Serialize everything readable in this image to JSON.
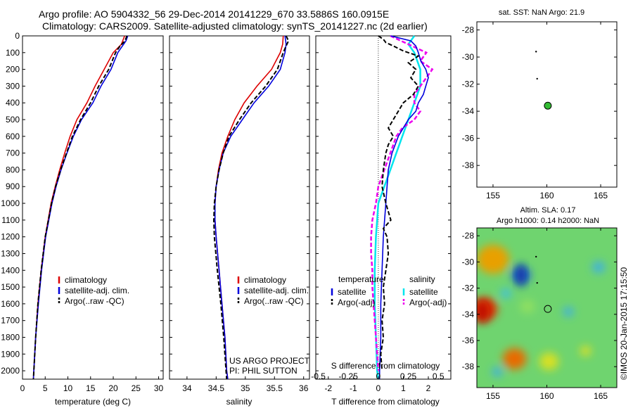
{
  "header": {
    "line1": "Argo profile: AO 5904332_56 29-Dec-2014 20141229_670 33.5886S 160.0915E",
    "line2": "Climatology: CARS2009. Satellite-adjusted climatology: synTS_20141227.nc (2d earlier)"
  },
  "credit": "©IMOS 20-Jan-2015 17:15:50",
  "colors": {
    "climatology": "#dd0000",
    "satellite": "#0000dd",
    "argo": "#000000",
    "sat_sal": "#00e5ee",
    "argo_sal": "#ee00ee"
  },
  "chart_data": [
    {
      "type": "line",
      "panel": "temperature",
      "xlabel": "temperature (deg C)",
      "xlim": [
        0,
        31
      ],
      "xticks": [
        0,
        5,
        10,
        15,
        20,
        25,
        30
      ],
      "ylim": [
        2050,
        0
      ],
      "yticks": [
        0,
        100,
        200,
        300,
        400,
        500,
        600,
        700,
        800,
        900,
        1000,
        1100,
        1200,
        1300,
        1400,
        1500,
        1600,
        1700,
        1800,
        1900,
        2000
      ],
      "legend": [
        "climatology",
        "satellite-adj. clim.",
        "Argo(..raw -QC)"
      ],
      "series": [
        {
          "name": "climatology",
          "depth": [
            0,
            50,
            100,
            200,
            300,
            400,
            500,
            600,
            700,
            800,
            900,
            1000,
            1200,
            1400,
            1600,
            1800,
            2000,
            2050
          ],
          "values": [
            22.5,
            21.8,
            20,
            18,
            16,
            14.2,
            12,
            10.5,
            9.3,
            8.2,
            7.2,
            6.3,
            5,
            4.1,
            3.4,
            2.9,
            2.5,
            2.4
          ]
        },
        {
          "name": "satellite-adj. clim.",
          "depth": [
            0,
            30,
            100,
            200,
            300,
            400,
            500,
            600,
            700,
            800,
            900,
            1000,
            1200,
            1400,
            1600,
            1800,
            2000,
            2050
          ],
          "values": [
            23.2,
            22.8,
            21,
            19.5,
            17.3,
            15.5,
            13,
            11.2,
            9.8,
            8.5,
            7.4,
            6.5,
            5.1,
            4.2,
            3.5,
            2.9,
            2.5,
            2.4
          ]
        },
        {
          "name": "Argo(..raw -QC)",
          "depth": [
            0,
            30,
            60,
            100,
            200,
            300,
            400,
            500,
            600,
            700,
            800,
            900,
            1000,
            1200,
            1400,
            1600,
            1800,
            2000,
            2050
          ],
          "values": [
            23,
            22.6,
            21.5,
            20.5,
            19,
            16.8,
            15,
            12.8,
            11,
            9.7,
            8.4,
            7.3,
            6.4,
            5,
            4.1,
            3.4,
            2.9,
            2.5,
            2.4
          ]
        }
      ]
    },
    {
      "type": "line",
      "panel": "salinity",
      "xlabel": "salinity",
      "xlim": [
        33.7,
        36.1
      ],
      "xticks": [
        34,
        34.5,
        35,
        35.5,
        36
      ],
      "xticklabels": [
        "34",
        "34.5",
        "35",
        "35.5",
        "36"
      ],
      "ylim": [
        2050,
        0
      ],
      "legend": [
        "climatology",
        "satellite-adj. clim.",
        "Argo(..raw -QC)"
      ],
      "note": [
        "US ARGO PROJECT",
        "PI: PHIL SUTTON"
      ],
      "series": [
        {
          "name": "climatology",
          "depth": [
            0,
            50,
            100,
            200,
            300,
            400,
            500,
            600,
            700,
            800,
            900,
            1000,
            1100,
            1200,
            1400,
            1600,
            1800,
            2000,
            2050
          ],
          "values": [
            35.65,
            35.64,
            35.6,
            35.45,
            35.2,
            34.98,
            34.82,
            34.7,
            34.6,
            34.54,
            34.5,
            34.48,
            34.48,
            34.5,
            34.55,
            34.6,
            34.65,
            34.68,
            34.7
          ]
        },
        {
          "name": "satellite-adj. clim.",
          "depth": [
            0,
            50,
            100,
            200,
            300,
            400,
            500,
            600,
            700,
            800,
            900,
            1000,
            1100,
            1200,
            1400,
            1600,
            1800,
            2000,
            2050
          ],
          "values": [
            35.68,
            35.7,
            35.68,
            35.6,
            35.4,
            35.15,
            34.95,
            34.75,
            34.62,
            34.55,
            34.5,
            34.48,
            34.48,
            34.5,
            34.55,
            34.6,
            34.65,
            34.68,
            34.7
          ]
        },
        {
          "name": "Argo(..raw -QC)",
          "depth": [
            0,
            30,
            60,
            100,
            200,
            300,
            400,
            500,
            600,
            700,
            800,
            900,
            1000,
            1100,
            1200,
            1400,
            1600,
            1800,
            2000,
            2050
          ],
          "values": [
            35.7,
            35.74,
            35.7,
            35.65,
            35.55,
            35.35,
            35.1,
            34.9,
            34.72,
            34.62,
            34.55,
            34.5,
            34.47,
            34.46,
            34.47,
            34.52,
            34.58,
            34.63,
            34.67,
            34.68
          ]
        }
      ]
    },
    {
      "type": "line",
      "panel": "difference",
      "xlabel": "T difference from climatology",
      "xlabel_top": "S difference from climatology",
      "xlim": [
        -2.5,
        2.9
      ],
      "xticks": [
        -2,
        -1,
        0,
        1,
        2
      ],
      "xticklabels": [
        "-2",
        "-1",
        "0",
        "1",
        "2"
      ],
      "xticks_s": [
        -0.5,
        -0.25,
        0,
        0.25,
        0.5
      ],
      "xticklabels_s": [
        "-0.5",
        "-0.25",
        "0",
        "0.25",
        "0.5"
      ],
      "ylim": [
        2050,
        0
      ],
      "legend_temperature": {
        "heading": "temperature",
        "items": [
          "satellite",
          "Argo(-adj)"
        ]
      },
      "legend_salinity": {
        "heading": "salinity",
        "items": [
          "satellite",
          "Argo(-adj)"
        ]
      },
      "series": [
        {
          "name": "temperature satellite",
          "depth": [
            0,
            30,
            60,
            100,
            150,
            200,
            250,
            300,
            350,
            400,
            450,
            500,
            550,
            600,
            700,
            800,
            900,
            1000,
            1200,
            1400,
            1600,
            1800,
            2000,
            2050
          ],
          "values": [
            0.5,
            1.3,
            1.5,
            1.6,
            1.7,
            1.9,
            2.0,
            1.9,
            1.8,
            1.6,
            1.5,
            1.2,
            1.0,
            0.8,
            0.55,
            0.4,
            0.35,
            0.3,
            0.2,
            0.15,
            0.1,
            0.1,
            0.05,
            0.05
          ]
        },
        {
          "name": "temperature Argo(-adj)",
          "depth": [
            0,
            20,
            40,
            60,
            90,
            120,
            160,
            200,
            250,
            300,
            350,
            400,
            450,
            500,
            550,
            600,
            650,
            700,
            800,
            900,
            1000,
            1100,
            1150,
            1200,
            1300,
            1400,
            1500,
            1600,
            1700,
            1800,
            1900,
            2000
          ],
          "values": [
            0,
            0.2,
            0.3,
            0.6,
            1.0,
            1.6,
            1.2,
            1.5,
            1.3,
            1.6,
            1.4,
            1.0,
            0.8,
            0.6,
            0.4,
            0.6,
            0.4,
            0.3,
            0.2,
            0.15,
            0.3,
            0.5,
            0.2,
            0.35,
            0.4,
            0.3,
            0.2,
            0.25,
            0.15,
            0.2,
            0.1,
            0.15
          ]
        },
        {
          "name": "salinity satellite",
          "depth": [
            0,
            50,
            100,
            200,
            300,
            400,
            500,
            600,
            700,
            800,
            900,
            1000,
            1200,
            1400,
            1600,
            1800,
            2000,
            2050
          ],
          "values": [
            0.3,
            0.25,
            0.3,
            0.35,
            0.35,
            0.3,
            0.25,
            0.2,
            0.15,
            0.1,
            0.05,
            0.0,
            -0.02,
            -0.03,
            -0.03,
            -0.02,
            -0.01,
            0
          ]
        },
        {
          "name": "salinity Argo(-adj)",
          "depth": [
            0,
            50,
            100,
            150,
            200,
            250,
            300,
            350,
            400,
            450,
            500,
            550,
            600,
            700,
            800,
            900,
            1000,
            1100,
            1200,
            1300,
            1400,
            1500,
            1600,
            1800,
            2000
          ],
          "values": [
            0.1,
            0.25,
            0.4,
            0.35,
            0.45,
            0.4,
            0.35,
            0.3,
            0.3,
            0.35,
            0.3,
            0.2,
            0.15,
            0.1,
            0.05,
            0.0,
            -0.02,
            -0.05,
            -0.06,
            -0.06,
            -0.05,
            -0.05,
            -0.04,
            -0.02,
            0
          ]
        }
      ]
    },
    {
      "type": "scatter",
      "panel": "sst-map",
      "title": "sat. SST: NaN Argo: 21.9",
      "xlim": [
        153.5,
        166.5
      ],
      "ylim": [
        -39.6,
        -27.4
      ],
      "xticks": [
        155,
        160,
        165
      ],
      "yticks": [
        -28,
        -30,
        -32,
        -34,
        -36,
        -38
      ],
      "track": [
        [
          159.0,
          -29.6
        ],
        [
          159.1,
          -31.6
        ]
      ],
      "argo_position": [
        160.0915,
        -33.5886
      ]
    },
    {
      "type": "heatmap",
      "panel": "sla-map",
      "title_line1": "Altim. SLA: 0.17",
      "title_line2": "Argo h1000: 0.14 h2000: NaN",
      "xlim": [
        153.5,
        166.5
      ],
      "ylim": [
        -39.6,
        -27.4
      ],
      "xticks": [
        155,
        160,
        165
      ],
      "yticks": [
        -28,
        -30,
        -32,
        -34,
        -36,
        -38
      ],
      "argo_position": [
        160.0915,
        -33.5886
      ],
      "blobs": [
        {
          "x": 155.0,
          "y": -29.8,
          "r": 1.5,
          "c": "#e8a000"
        },
        {
          "x": 154.2,
          "y": -33.6,
          "r": 1.2,
          "c": "#e03000"
        },
        {
          "x": 157.0,
          "y": -37.4,
          "r": 1.1,
          "c": "#e86a00"
        },
        {
          "x": 157.6,
          "y": -31.0,
          "r": 0.9,
          "c": "#2060d0"
        },
        {
          "x": 156.2,
          "y": -32.4,
          "r": 0.5,
          "c": "#40c0e0"
        },
        {
          "x": 158.2,
          "y": -33.4,
          "r": 0.7,
          "c": "#90e060"
        },
        {
          "x": 162.0,
          "y": -33.8,
          "r": 0.5,
          "c": "#40b0e0"
        },
        {
          "x": 164.8,
          "y": -30.4,
          "r": 0.6,
          "c": "#40b0e0"
        },
        {
          "x": 155.4,
          "y": -38.4,
          "r": 0.5,
          "c": "#40b0e0"
        },
        {
          "x": 163.6,
          "y": -36.8,
          "r": 0.5,
          "c": "#e0e020"
        },
        {
          "x": 160.2,
          "y": -37.6,
          "r": 0.9,
          "c": "#d8e020"
        }
      ]
    }
  ]
}
